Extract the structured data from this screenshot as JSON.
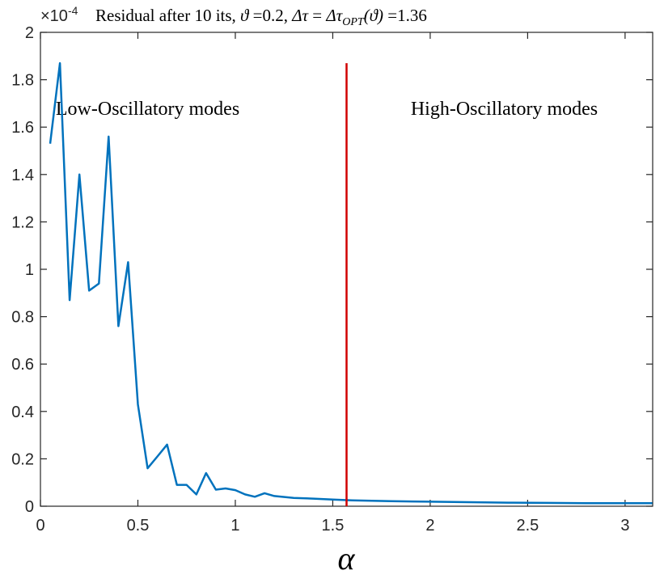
{
  "chart_data": {
    "type": "line",
    "title": "Residual after 10 its, ϑ =0.2, Δτ = Δτ_OPT(ϑ) =1.36",
    "title_parts": {
      "lead": "Residual after 10 its, ",
      "theta_sym": "ϑ",
      "theta_val": " =0.2, ",
      "dtau": "Δτ",
      "eq": " = ",
      "dtau2": "Δτ",
      "sub": "OPT",
      "arg": "(ϑ)",
      "tail": " =1.36"
    },
    "exponent_label": {
      "base": "×10",
      "power": "-4"
    },
    "xlabel": "α",
    "ylabel": "",
    "xlim": [
      0,
      3.1416
    ],
    "ylim": [
      0,
      2
    ],
    "xticks": [
      0,
      0.5,
      1,
      1.5,
      2,
      2.5,
      3
    ],
    "xtick_labels": [
      "0",
      "0.5",
      "1",
      "1.5",
      "2",
      "2.5",
      "3"
    ],
    "yticks": [
      0,
      0.2,
      0.4,
      0.6,
      0.8,
      1,
      1.2,
      1.4,
      1.6,
      1.8,
      2
    ],
    "ytick_labels": [
      "0",
      "0.2",
      "0.4",
      "0.6",
      "0.8",
      "1",
      "1.2",
      "1.4",
      "1.6",
      "1.8",
      "2"
    ],
    "grid": false,
    "series": [
      {
        "name": "residual",
        "color": "#0072BD",
        "x": [
          0.05,
          0.1,
          0.15,
          0.2,
          0.25,
          0.3,
          0.35,
          0.4,
          0.45,
          0.5,
          0.55,
          0.6,
          0.65,
          0.7,
          0.75,
          0.8,
          0.85,
          0.9,
          0.95,
          1.0,
          1.05,
          1.1,
          1.15,
          1.2,
          1.3,
          1.4,
          1.5,
          1.6,
          1.8,
          2.0,
          2.2,
          2.4,
          2.6,
          2.8,
          3.0,
          3.14
        ],
        "y": [
          1.53,
          1.87,
          0.87,
          1.4,
          0.91,
          0.94,
          1.56,
          0.76,
          1.03,
          0.43,
          0.16,
          0.21,
          0.26,
          0.09,
          0.09,
          0.05,
          0.14,
          0.07,
          0.075,
          0.068,
          0.05,
          0.04,
          0.055,
          0.043,
          0.035,
          0.032,
          0.028,
          0.025,
          0.021,
          0.019,
          0.017,
          0.015,
          0.014,
          0.013,
          0.013,
          0.013
        ]
      }
    ],
    "vertical_line": {
      "x": 1.5708,
      "y_top": 1.87,
      "color": "#D00000"
    },
    "annotations": [
      {
        "text": "Low-Oscillatory modes",
        "x": 0.55,
        "y": 1.68
      },
      {
        "text": "High-Oscillatory modes",
        "x": 2.38,
        "y": 1.68
      }
    ]
  }
}
